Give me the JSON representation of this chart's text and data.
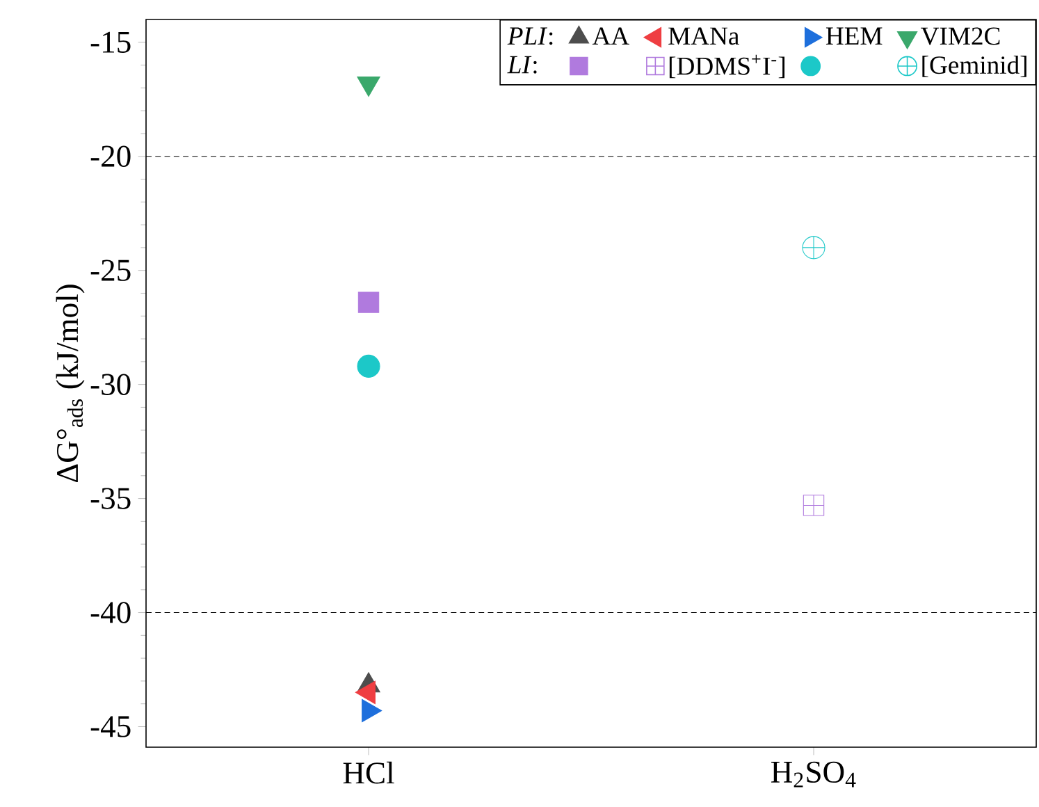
{
  "chart_data": {
    "type": "scatter",
    "ylabel": "ΔG°$_{ads}$ (kJ/mol)",
    "categories": [
      "HCl",
      "H$_{2}$SO$_{4}$"
    ],
    "ylim": [
      -45.9,
      -14.0
    ],
    "yticks": [
      -15,
      -20,
      -25,
      -30,
      -35,
      -40,
      -45
    ],
    "grid": false,
    "legend": "top right",
    "annotations": [
      "*PLI*:",
      "*LI*:"
    ],
    "ref_lines": [
      {
        "axis": "y",
        "value": -20,
        "line_style": "dashed",
        "color": "#000000"
      },
      {
        "axis": "y",
        "value": -40,
        "line_style": "dashed",
        "color": "#000000"
      }
    ],
    "series": [
      {
        "name": "AA",
        "color": "#4d4d4d",
        "marker": "triangle",
        "values": [
          -43.2,
          null
        ]
      },
      {
        "name": "MANa",
        "color": "#ef3e42",
        "marker": "triangle-left",
        "values": [
          -43.5,
          null
        ]
      },
      {
        "name": "HEM",
        "color": "#1e6fdc",
        "marker": "triangle-right",
        "values": [
          -44.3,
          null
        ]
      },
      {
        "name": "VIM2C",
        "color": "#3aa86b",
        "marker": "triangle-down",
        "values": [
          -16.8,
          null
        ]
      },
      {
        "color": "#b07ade",
        "marker": "square",
        "values": [
          -26.4,
          null
        ]
      },
      {
        "name": "[DDMS$^{+}$I$^{-}$]",
        "color": "#b07ade",
        "marker": "cross",
        "values": [
          null,
          -35.3
        ]
      },
      {
        "color": "#1cc8c8",
        "marker": "circle",
        "values": [
          -29.2,
          null
        ]
      },
      {
        "name": "[Geminid]",
        "color": "#1cc8c8",
        "marker": "cross",
        "values": [
          null,
          -24.0
        ]
      }
    ]
  }
}
